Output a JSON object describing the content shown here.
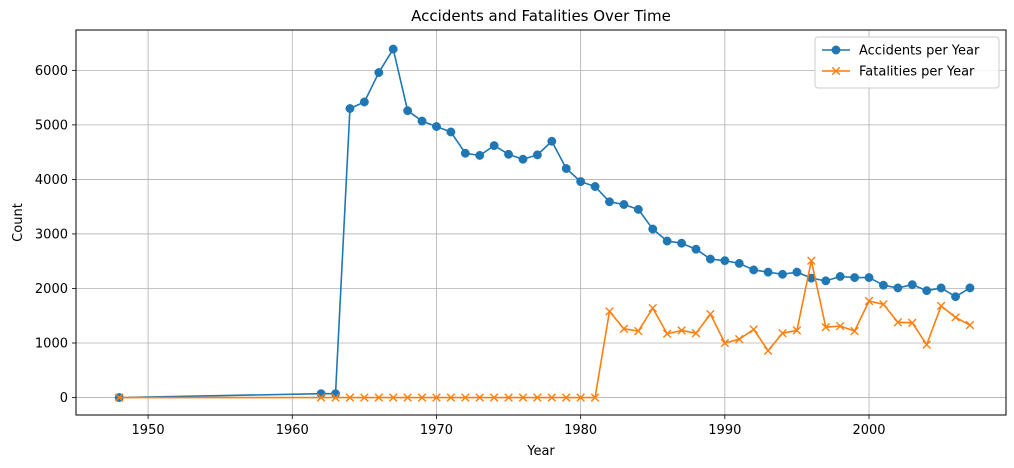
{
  "chart_data": {
    "type": "line",
    "title": "Accidents and Fatalities Over Time",
    "xlabel": "Year",
    "ylabel": "Count",
    "xlim": [
      1945,
      2009.5
    ],
    "ylim": [
      -320,
      6740
    ],
    "xticks": [
      1950,
      1960,
      1970,
      1980,
      1990,
      2000
    ],
    "yticks": [
      0,
      1000,
      2000,
      3000,
      4000,
      5000,
      6000
    ],
    "grid": true,
    "legend_position": "top-right",
    "series": [
      {
        "name": "Accidents per Year",
        "color": "#1f77b4",
        "marker": "circle",
        "x": [
          1948,
          1962,
          1963,
          1964,
          1965,
          1966,
          1967,
          1968,
          1969,
          1970,
          1971,
          1972,
          1973,
          1974,
          1975,
          1976,
          1977,
          1978,
          1979,
          1980,
          1981,
          1982,
          1983,
          1984,
          1985,
          1986,
          1987,
          1988,
          1989,
          1990,
          1991,
          1992,
          1993,
          1994,
          1995,
          1996,
          1997,
          1998,
          1999,
          2000,
          2001,
          2002,
          2003,
          2004,
          2005,
          2006,
          2007
        ],
        "y": [
          0,
          70,
          70,
          5300,
          5420,
          5960,
          6390,
          5260,
          5070,
          4970,
          4870,
          4480,
          4440,
          4620,
          4460,
          4370,
          4450,
          4700,
          4200,
          3960,
          3870,
          3590,
          3540,
          3450,
          3090,
          2870,
          2830,
          2720,
          2540,
          2510,
          2460,
          2340,
          2300,
          2260,
          2300,
          2190,
          2140,
          2220,
          2200,
          2200,
          2060,
          2010,
          2070,
          1960,
          2010,
          1850,
          2010
        ]
      },
      {
        "name": "Fatalities per Year",
        "color": "#ff7f0e",
        "marker": "x",
        "x": [
          1948,
          1962,
          1963,
          1964,
          1965,
          1966,
          1967,
          1968,
          1969,
          1970,
          1971,
          1972,
          1973,
          1974,
          1975,
          1976,
          1977,
          1978,
          1979,
          1980,
          1981,
          1982,
          1983,
          1984,
          1985,
          1986,
          1987,
          1988,
          1989,
          1990,
          1991,
          1992,
          1993,
          1994,
          1995,
          1996,
          1997,
          1998,
          1999,
          2000,
          2001,
          2002,
          2003,
          2004,
          2005,
          2006,
          2007
        ],
        "y": [
          0,
          0,
          0,
          0,
          0,
          0,
          0,
          0,
          0,
          0,
          0,
          0,
          0,
          0,
          0,
          0,
          0,
          0,
          0,
          0,
          0,
          1580,
          1260,
          1220,
          1640,
          1170,
          1230,
          1180,
          1530,
          1000,
          1070,
          1250,
          860,
          1180,
          1230,
          2510,
          1290,
          1310,
          1220,
          1770,
          1710,
          1380,
          1370,
          970,
          1680,
          1470,
          1330
        ]
      }
    ]
  }
}
